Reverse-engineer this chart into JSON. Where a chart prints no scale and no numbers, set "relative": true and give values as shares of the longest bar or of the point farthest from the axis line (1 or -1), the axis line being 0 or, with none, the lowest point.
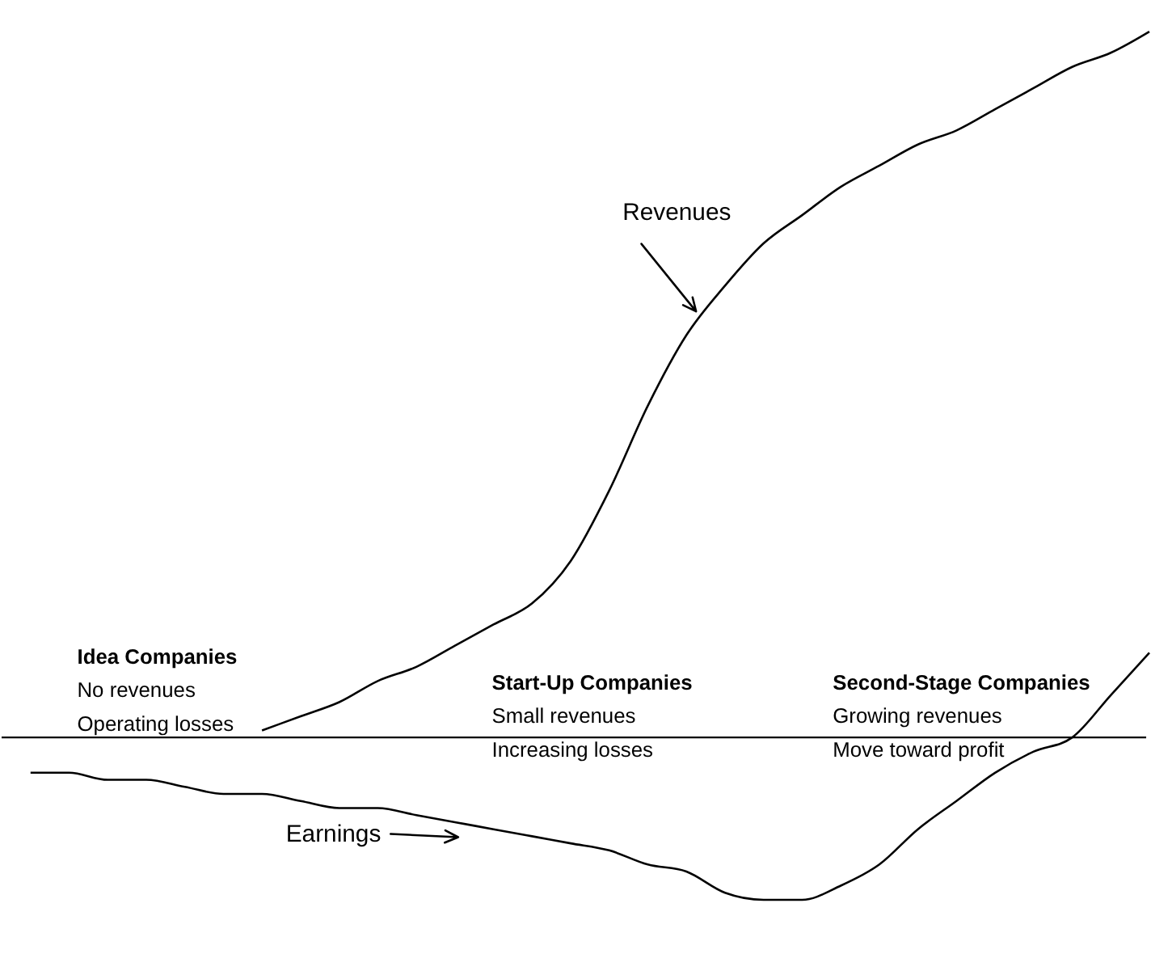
{
  "chart_data": {
    "type": "line",
    "relative": true,
    "categories": [
      null,
      null,
      null,
      null,
      null,
      null,
      null,
      null,
      null,
      null,
      null,
      null,
      null,
      null,
      null,
      null,
      null,
      null,
      null,
      null,
      null,
      null,
      null,
      null,
      null,
      null,
      null,
      null,
      null,
      null
    ],
    "series": [
      {
        "name": "Revenues",
        "color": "#000000",
        "values": [
          null,
          null,
          null,
          null,
          null,
          null,
          0.01,
          0.03,
          0.05,
          0.08,
          0.1,
          0.13,
          0.16,
          0.19,
          0.25,
          0.35,
          0.47,
          0.57,
          0.64,
          0.7,
          0.74,
          0.78,
          0.81,
          0.84,
          0.86,
          0.89,
          0.92,
          0.95,
          0.97,
          1
        ]
      },
      {
        "name": "Earnings",
        "color": "#000000",
        "values": [
          -0.05,
          -0.05,
          -0.06,
          -0.06,
          -0.07,
          -0.08,
          -0.08,
          -0.09,
          -0.1,
          -0.1,
          -0.11,
          -0.12,
          -0.13,
          -0.14,
          -0.15,
          -0.16,
          -0.18,
          -0.19,
          -0.22,
          -0.23,
          -0.23,
          -0.21,
          -0.18,
          -0.13,
          -0.09,
          -0.05,
          -0.02,
          0,
          0.06,
          0.12
        ]
      }
    ],
    "annotations": [
      "Idea Companies\nNo revenues\nOperating losses",
      "Start-Up Companies\nSmall revenues\nIncreasing losses",
      "Second-Stage Companies\nGrowing revenues\nMove toward profit"
    ]
  }
}
